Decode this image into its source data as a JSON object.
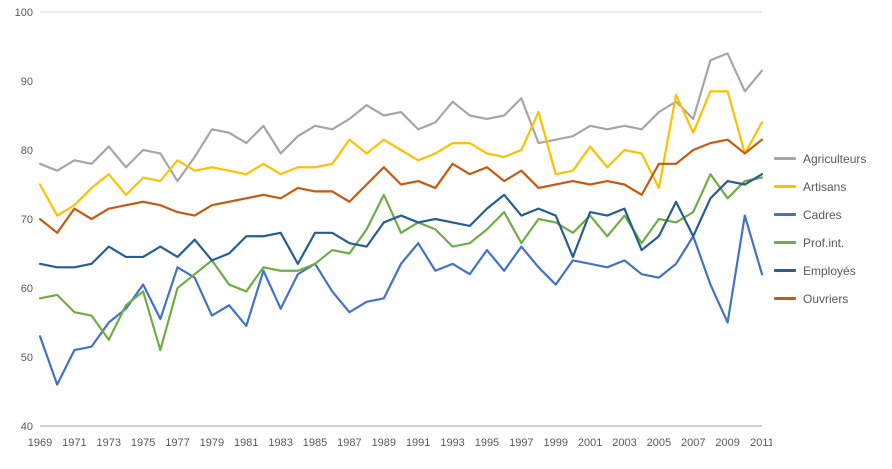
{
  "chart_data": {
    "type": "line",
    "title": "",
    "xlabel": "",
    "ylabel": "",
    "ylim": [
      40,
      100
    ],
    "y_ticks": [
      40,
      50,
      60,
      70,
      80,
      90,
      100
    ],
    "grid": false,
    "legend_position": "right",
    "axis_color": "#9d9d9d",
    "grid_color": "#d9d9d9",
    "label_color": "#595959",
    "x": [
      1969,
      1970,
      1971,
      1972,
      1973,
      1974,
      1975,
      1976,
      1977,
      1978,
      1979,
      1980,
      1981,
      1982,
      1983,
      1984,
      1985,
      1986,
      1987,
      1988,
      1989,
      1990,
      1991,
      1992,
      1993,
      1994,
      1995,
      1996,
      1997,
      1998,
      1999,
      2000,
      2001,
      2002,
      2003,
      2004,
      2005,
      2006,
      2007,
      2008,
      2009,
      2010,
      2011
    ],
    "x_tick_labels": [
      "1969",
      "1971",
      "1973",
      "1975",
      "1977",
      "1979",
      "1981",
      "1983",
      "1985",
      "1987",
      "1989",
      "1991",
      "1993",
      "1995",
      "1997",
      "1999",
      "2001",
      "2003",
      "2005",
      "2007",
      "2009",
      "2011"
    ],
    "series": [
      {
        "name": "Agriculteurs",
        "color": "#a6a6a6",
        "values": [
          78,
          77,
          78.5,
          78,
          80.5,
          77.5,
          80,
          79.5,
          75.5,
          79,
          83,
          82.5,
          81,
          83.5,
          79.5,
          82,
          83.5,
          83,
          84.5,
          86.5,
          85,
          85.5,
          83,
          84,
          87,
          85,
          84.5,
          85,
          87.5,
          81,
          81.5,
          82,
          83.5,
          83,
          83.5,
          83,
          85.5,
          87,
          84.5,
          93,
          94,
          88.5,
          91.5
        ]
      },
      {
        "name": "Artisans",
        "color": "#ffc000",
        "values": [
          75,
          70.5,
          72,
          74.5,
          76.5,
          73.5,
          76,
          75.5,
          78.5,
          77,
          77.5,
          77,
          76.5,
          78,
          76.5,
          77.5,
          77.5,
          78,
          81.5,
          79.5,
          81.5,
          80,
          78.5,
          79.5,
          81,
          81,
          79.5,
          79,
          80,
          85.5,
          76.5,
          77,
          80.5,
          77.5,
          80,
          79.5,
          74.5,
          88,
          82.5,
          88.5,
          88.5,
          79.5,
          84
        ]
      },
      {
        "name": "Cadres",
        "color": "#4472c4",
        "values": [
          53,
          46,
          51,
          51.5,
          55,
          57,
          60.5,
          55.5,
          63,
          61.5,
          56,
          57.5,
          54.5,
          62.5,
          57,
          62,
          63.5,
          59.5,
          56.5,
          58,
          58.5,
          63.5,
          66.5,
          62.5,
          63.5,
          62,
          65.5,
          62.5,
          66,
          63,
          60.5,
          64,
          63.5,
          63,
          64,
          62,
          61.5,
          63.5,
          67.5,
          60.5,
          55,
          70.5,
          62
        ]
      },
      {
        "name": "Prof.int.",
        "color": "#70ad47",
        "values": [
          58.5,
          59,
          56.5,
          56,
          52.5,
          57.5,
          59.5,
          51,
          60,
          62,
          64,
          60.5,
          59.5,
          63,
          62.5,
          62.5,
          63.5,
          65.5,
          65,
          68.5,
          73.5,
          68,
          69.5,
          68.5,
          66,
          66.5,
          68.5,
          71,
          66.5,
          70,
          69.5,
          68,
          70.5,
          67.5,
          70.5,
          66.5,
          70,
          69.5,
          71,
          76.5,
          73,
          75.5,
          76
        ]
      },
      {
        "name": "Employés",
        "color": "#255e91",
        "values": [
          63.5,
          63,
          63,
          63.5,
          66,
          64.5,
          64.5,
          66,
          64.5,
          67,
          64,
          65,
          67.5,
          67.5,
          68,
          63.5,
          68,
          68,
          66.5,
          66,
          69.5,
          70.5,
          69.5,
          70,
          69.5,
          69,
          71.5,
          73.5,
          70.5,
          71.5,
          70.5,
          64.5,
          71,
          70.5,
          71.5,
          65.5,
          67.5,
          72.5,
          67.5,
          73,
          75.5,
          75,
          76.5
        ]
      },
      {
        "name": "Ouvriers",
        "color": "#c55a11",
        "values": [
          70,
          68,
          71.5,
          70,
          71.5,
          72,
          72.5,
          72,
          71,
          70.5,
          72,
          72.5,
          73,
          73.5,
          73,
          74.5,
          74,
          74,
          72.5,
          75,
          77.5,
          75,
          75.5,
          74.5,
          78,
          76.5,
          77.5,
          75.5,
          77,
          74.5,
          75,
          75.5,
          75,
          75.5,
          75,
          73.5,
          78,
          78,
          80,
          81,
          81.5,
          79.5,
          81.5
        ]
      }
    ]
  }
}
